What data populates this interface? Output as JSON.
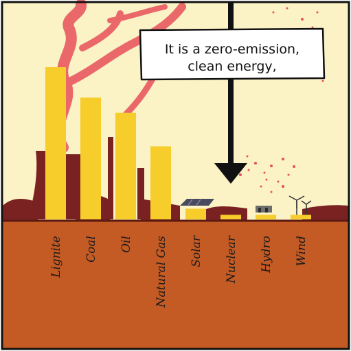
{
  "colors": {
    "sky": "#fbf2c6",
    "ground": "#c45a24",
    "bar": "#f7cd2c",
    "smoke": "#e8505b",
    "industry": "#7a2222",
    "arrow": "#111111"
  },
  "speech_bubble": {
    "line1": "It is a zero-emission,",
    "line2": "clean energy,"
  },
  "chart_data": {
    "type": "bar",
    "categories": [
      "Lignite",
      "Coal",
      "Oil",
      "Natural Gas",
      "Solar",
      "Nuclear",
      "Hydro",
      "Wind"
    ],
    "values": [
      100,
      80,
      70,
      48,
      7,
      3,
      3,
      3
    ],
    "highlighted_category": "Nuclear",
    "title": "",
    "xlabel": "",
    "ylabel": "",
    "ylim": [
      0,
      100
    ],
    "grid": false,
    "legend": "none"
  }
}
